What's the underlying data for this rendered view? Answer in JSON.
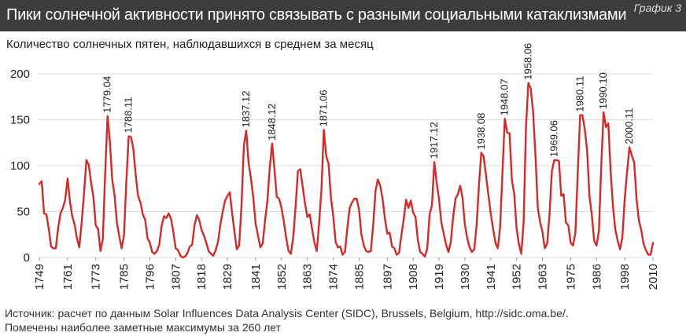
{
  "header": {
    "title": "Пики солнечной активности принято связывать с разными социальными катаклизмами",
    "tag": "График 3"
  },
  "subtitle": "Количество солнечных пятен, наблюдавшихся в среднем за месяц",
  "footer": {
    "source": "Источник: расчет по данным Solar Influences Data Analysis Center (SIDC), Brussels, Belgium, http://sidc.oma.be/.",
    "note": "Помечены наиболее заметные максимумы за 260 лет"
  },
  "colors": {
    "line": "#d42a28",
    "header_bg": "#3c3c3c",
    "grid": "#dddddd"
  },
  "chart_data": {
    "type": "line",
    "title": "Пики солнечной активности принято связывать с разными социальными катаклизмами",
    "ylabel": "Количество солнечных пятен, наблюдавшихся в среднем за месяц",
    "xlabel": "",
    "xlim": [
      1749,
      2010
    ],
    "ylim": [
      0,
      200
    ],
    "grid": true,
    "x_ticks": [
      "1749",
      "1761",
      "1773",
      "1785",
      "1796",
      "1807",
      "1818",
      "1829",
      "1841",
      "1852",
      "1863",
      "1874",
      "1885",
      "1897",
      "1908",
      "1919",
      "1930",
      "1941",
      "1952",
      "1963",
      "1975",
      "1986",
      "1998",
      "2010"
    ],
    "y_ticks": [
      "0",
      "50",
      "100",
      "150",
      "200"
    ],
    "series": [
      {
        "points": [
          [
            1749,
            80
          ],
          [
            1750,
            83
          ],
          [
            1751,
            48
          ],
          [
            1752,
            47
          ],
          [
            1753,
            31
          ],
          [
            1754,
            12
          ],
          [
            1755,
            10
          ],
          [
            1756,
            10
          ],
          [
            1757,
            32
          ],
          [
            1758,
            48
          ],
          [
            1759,
            54
          ],
          [
            1760,
            63
          ],
          [
            1761,
            86
          ],
          [
            1762,
            61
          ],
          [
            1763,
            45
          ],
          [
            1764,
            36
          ],
          [
            1765,
            21
          ],
          [
            1766,
            11
          ],
          [
            1767,
            38
          ],
          [
            1768,
            70
          ],
          [
            1769,
            106
          ],
          [
            1770,
            101
          ],
          [
            1771,
            82
          ],
          [
            1772,
            66
          ],
          [
            1773,
            35
          ],
          [
            1774,
            31
          ],
          [
            1775,
            7
          ],
          [
            1776,
            20
          ],
          [
            1777,
            92
          ],
          [
            1778,
            154
          ],
          [
            1779,
            126
          ],
          [
            1780,
            85
          ],
          [
            1781,
            68
          ],
          [
            1782,
            38
          ],
          [
            1783,
            23
          ],
          [
            1784,
            10
          ],
          [
            1785,
            24
          ],
          [
            1786,
            83
          ],
          [
            1787,
            132
          ],
          [
            1788,
            131
          ],
          [
            1789,
            118
          ],
          [
            1790,
            90
          ],
          [
            1791,
            67
          ],
          [
            1792,
            60
          ],
          [
            1793,
            47
          ],
          [
            1794,
            41
          ],
          [
            1795,
            21
          ],
          [
            1796,
            16
          ],
          [
            1797,
            6
          ],
          [
            1798,
            4
          ],
          [
            1799,
            7
          ],
          [
            1800,
            14
          ],
          [
            1801,
            34
          ],
          [
            1802,
            45
          ],
          [
            1803,
            43
          ],
          [
            1804,
            48
          ],
          [
            1805,
            42
          ],
          [
            1806,
            28
          ],
          [
            1807,
            10
          ],
          [
            1808,
            8
          ],
          [
            1809,
            2
          ],
          [
            1810,
            0
          ],
          [
            1811,
            1
          ],
          [
            1812,
            5
          ],
          [
            1813,
            12
          ],
          [
            1814,
            14
          ],
          [
            1815,
            35
          ],
          [
            1816,
            46
          ],
          [
            1817,
            41
          ],
          [
            1818,
            30
          ],
          [
            1819,
            24
          ],
          [
            1820,
            16
          ],
          [
            1821,
            7
          ],
          [
            1822,
            4
          ],
          [
            1823,
            2
          ],
          [
            1824,
            8
          ],
          [
            1825,
            17
          ],
          [
            1826,
            36
          ],
          [
            1827,
            50
          ],
          [
            1828,
            62
          ],
          [
            1829,
            67
          ],
          [
            1830,
            71
          ],
          [
            1831,
            48
          ],
          [
            1832,
            28
          ],
          [
            1833,
            9
          ],
          [
            1834,
            13
          ],
          [
            1835,
            57
          ],
          [
            1836,
            122
          ],
          [
            1837,
            138
          ],
          [
            1838,
            103
          ],
          [
            1839,
            86
          ],
          [
            1840,
            65
          ],
          [
            1841,
            37
          ],
          [
            1842,
            24
          ],
          [
            1843,
            11
          ],
          [
            1844,
            15
          ],
          [
            1845,
            40
          ],
          [
            1846,
            62
          ],
          [
            1847,
            98
          ],
          [
            1848,
            124
          ],
          [
            1849,
            96
          ],
          [
            1850,
            66
          ],
          [
            1851,
            64
          ],
          [
            1852,
            54
          ],
          [
            1853,
            39
          ],
          [
            1854,
            21
          ],
          [
            1855,
            7
          ],
          [
            1856,
            4
          ],
          [
            1857,
            23
          ],
          [
            1858,
            55
          ],
          [
            1859,
            94
          ],
          [
            1860,
            96
          ],
          [
            1861,
            77
          ],
          [
            1862,
            59
          ],
          [
            1863,
            44
          ],
          [
            1864,
            47
          ],
          [
            1865,
            31
          ],
          [
            1866,
            16
          ],
          [
            1867,
            7
          ],
          [
            1868,
            37
          ],
          [
            1869,
            74
          ],
          [
            1870,
            139
          ],
          [
            1871,
            111
          ],
          [
            1872,
            102
          ],
          [
            1873,
            66
          ],
          [
            1874,
            45
          ],
          [
            1875,
            17
          ],
          [
            1876,
            11
          ],
          [
            1877,
            12
          ],
          [
            1878,
            3
          ],
          [
            1879,
            6
          ],
          [
            1880,
            32
          ],
          [
            1881,
            54
          ],
          [
            1882,
            60
          ],
          [
            1883,
            64
          ],
          [
            1884,
            64
          ],
          [
            1885,
            52
          ],
          [
            1886,
            25
          ],
          [
            1887,
            13
          ],
          [
            1888,
            7
          ],
          [
            1889,
            6
          ],
          [
            1890,
            7
          ],
          [
            1891,
            36
          ],
          [
            1892,
            73
          ],
          [
            1893,
            85
          ],
          [
            1894,
            78
          ],
          [
            1895,
            64
          ],
          [
            1896,
            42
          ],
          [
            1897,
            26
          ],
          [
            1898,
            27
          ],
          [
            1899,
            12
          ],
          [
            1900,
            10
          ],
          [
            1901,
            3
          ],
          [
            1902,
            5
          ],
          [
            1903,
            24
          ],
          [
            1904,
            42
          ],
          [
            1905,
            63
          ],
          [
            1906,
            54
          ],
          [
            1907,
            62
          ],
          [
            1908,
            49
          ],
          [
            1909,
            44
          ],
          [
            1910,
            19
          ],
          [
            1911,
            6
          ],
          [
            1912,
            4
          ],
          [
            1913,
            1
          ],
          [
            1914,
            10
          ],
          [
            1915,
            47
          ],
          [
            1916,
            57
          ],
          [
            1917,
            104
          ],
          [
            1918,
            81
          ],
          [
            1919,
            64
          ],
          [
            1920,
            38
          ],
          [
            1921,
            26
          ],
          [
            1922,
            14
          ],
          [
            1923,
            6
          ],
          [
            1924,
            17
          ],
          [
            1925,
            44
          ],
          [
            1926,
            64
          ],
          [
            1927,
            69
          ],
          [
            1928,
            78
          ],
          [
            1929,
            65
          ],
          [
            1930,
            36
          ],
          [
            1931,
            21
          ],
          [
            1932,
            11
          ],
          [
            1933,
            6
          ],
          [
            1934,
            9
          ],
          [
            1935,
            36
          ],
          [
            1936,
            80
          ],
          [
            1937,
            114
          ],
          [
            1938,
            110
          ],
          [
            1939,
            89
          ],
          [
            1940,
            68
          ],
          [
            1941,
            48
          ],
          [
            1942,
            31
          ],
          [
            1943,
            16
          ],
          [
            1944,
            10
          ],
          [
            1945,
            33
          ],
          [
            1946,
            93
          ],
          [
            1947,
            151
          ],
          [
            1948,
            136
          ],
          [
            1949,
            135
          ],
          [
            1950,
            84
          ],
          [
            1951,
            69
          ],
          [
            1952,
            31
          ],
          [
            1953,
            14
          ],
          [
            1954,
            4
          ],
          [
            1955,
            38
          ],
          [
            1956,
            142
          ],
          [
            1957,
            190
          ],
          [
            1958,
            184
          ],
          [
            1959,
            159
          ],
          [
            1960,
            112
          ],
          [
            1961,
            54
          ],
          [
            1962,
            38
          ],
          [
            1963,
            28
          ],
          [
            1964,
            10
          ],
          [
            1965,
            15
          ],
          [
            1966,
            47
          ],
          [
            1967,
            94
          ],
          [
            1968,
            106
          ],
          [
            1969,
            106
          ],
          [
            1970,
            105
          ],
          [
            1971,
            67
          ],
          [
            1972,
            69
          ],
          [
            1973,
            38
          ],
          [
            1974,
            35
          ],
          [
            1975,
            16
          ],
          [
            1976,
            13
          ],
          [
            1977,
            27
          ],
          [
            1978,
            92
          ],
          [
            1979,
            155
          ],
          [
            1980,
            155
          ],
          [
            1981,
            140
          ],
          [
            1982,
            116
          ],
          [
            1983,
            67
          ],
          [
            1984,
            46
          ],
          [
            1985,
            18
          ],
          [
            1986,
            13
          ],
          [
            1987,
            29
          ],
          [
            1988,
            100
          ],
          [
            1989,
            158
          ],
          [
            1990,
            142
          ],
          [
            1991,
            146
          ],
          [
            1992,
            94
          ],
          [
            1993,
            55
          ],
          [
            1994,
            30
          ],
          [
            1995,
            18
          ],
          [
            1996,
            9
          ],
          [
            1997,
            22
          ],
          [
            1998,
            64
          ],
          [
            1999,
            93
          ],
          [
            2000,
            120
          ],
          [
            2001,
            111
          ],
          [
            2002,
            104
          ],
          [
            2003,
            64
          ],
          [
            2004,
            40
          ],
          [
            2005,
            30
          ],
          [
            2006,
            15
          ],
          [
            2007,
            8
          ],
          [
            2008,
            3
          ],
          [
            2009,
            3
          ],
          [
            2010,
            16
          ]
        ]
      }
    ],
    "annotations": [
      {
        "label": "1779.04",
        "x": 1778,
        "y": 154
      },
      {
        "label": "1788.11",
        "x": 1787,
        "y": 132
      },
      {
        "label": "1837.12",
        "x": 1837,
        "y": 138
      },
      {
        "label": "1848.12",
        "x": 1848,
        "y": 124
      },
      {
        "label": "1871.06",
        "x": 1870,
        "y": 139
      },
      {
        "label": "1917.12",
        "x": 1917,
        "y": 104
      },
      {
        "label": "1938.08",
        "x": 1937,
        "y": 114
      },
      {
        "label": "1948.07",
        "x": 1947,
        "y": 151
      },
      {
        "label": "1958.06",
        "x": 1957,
        "y": 190
      },
      {
        "label": "1969.06",
        "x": 1968,
        "y": 106
      },
      {
        "label": "1980.11",
        "x": 1979,
        "y": 155
      },
      {
        "label": "1990.10",
        "x": 1989,
        "y": 158
      },
      {
        "label": "2000.11",
        "x": 2000,
        "y": 120
      }
    ]
  }
}
